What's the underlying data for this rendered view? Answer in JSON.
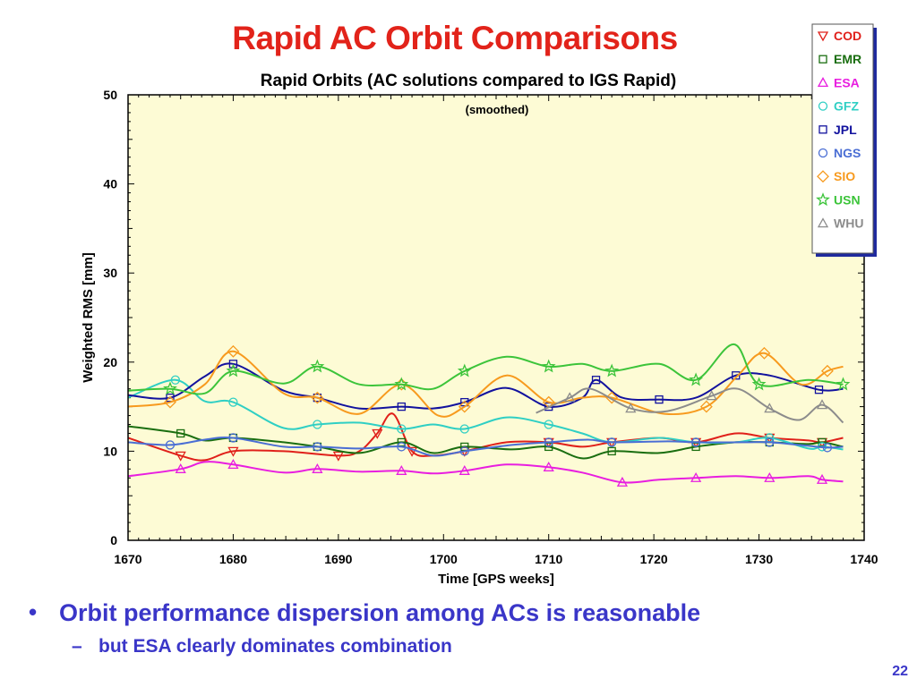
{
  "slide": {
    "title": "Rapid AC Orbit Comparisons",
    "bullet": "Orbit performance dispersion among ACs is reasonable",
    "sub_bullet": "but ESA clearly dominates combination",
    "page_number": "22"
  },
  "chart_data": {
    "type": "line",
    "title": "Rapid Orbits (AC solutions compared to IGS Rapid)",
    "subtitle": "(smoothed)",
    "xlabel": "Time [GPS weeks]",
    "ylabel": "Weighted RMS [mm]",
    "xlim": [
      1670,
      1740
    ],
    "ylim": [
      0,
      50
    ],
    "xticks": [
      1670,
      1680,
      1690,
      1700,
      1710,
      1720,
      1730,
      1740
    ],
    "yticks": [
      0,
      10,
      20,
      30,
      40,
      50
    ],
    "grid": false,
    "legend": "top-right",
    "plot_background": "#fdfbd5",
    "series": [
      {
        "name": "COD",
        "color": "#e0201a",
        "marker": "triangle-down",
        "x": [
          1670,
          1675,
          1677.3,
          1680,
          1684.8,
          1690,
          1692,
          1693.7,
          1695.2,
          1697,
          1699,
          1702,
          1706,
          1710,
          1713.2,
          1716,
          1720.5,
          1724,
          1727.8,
          1731,
          1734.7,
          1736,
          1738
        ],
        "y": [
          11.5,
          9.5,
          9.0,
          10.0,
          10.0,
          9.5,
          10.0,
          12.0,
          14.2,
          10.0,
          9.5,
          10.0,
          11.0,
          11.0,
          10.5,
          11.0,
          11.5,
          11.0,
          12.0,
          11.5,
          11.2,
          11.0,
          11.5
        ]
      },
      {
        "name": "EMR",
        "color": "#1a6e10",
        "marker": "square",
        "x": [
          1670,
          1675,
          1677.3,
          1680,
          1684.8,
          1688,
          1692,
          1696,
          1699,
          1702,
          1706.5,
          1710,
          1713.2,
          1716,
          1720.5,
          1724,
          1727.8,
          1731,
          1734.7,
          1736,
          1738
        ],
        "y": [
          12.8,
          12.0,
          11.2,
          11.5,
          11.0,
          10.5,
          9.8,
          11.0,
          9.8,
          10.5,
          10.2,
          10.5,
          9.2,
          10.0,
          9.8,
          10.5,
          11.0,
          11.0,
          10.8,
          11.0,
          10.5
        ]
      },
      {
        "name": "ESA",
        "color": "#e81ee0",
        "marker": "triangle-up",
        "x": [
          1670,
          1675,
          1677.3,
          1680,
          1684.8,
          1688,
          1692,
          1696,
          1699,
          1702,
          1706,
          1710,
          1713.2,
          1717,
          1720.5,
          1724,
          1727.8,
          1731,
          1734.7,
          1736,
          1738
        ],
        "y": [
          7.2,
          8.0,
          8.8,
          8.5,
          7.6,
          8.0,
          7.7,
          7.8,
          7.5,
          7.8,
          8.5,
          8.2,
          7.6,
          6.5,
          6.8,
          7.0,
          7.2,
          7.0,
          7.2,
          6.8,
          6.6
        ]
      },
      {
        "name": "GFZ",
        "color": "#2fcfc4",
        "marker": "circle",
        "x": [
          1670,
          1674.5,
          1677.3,
          1680,
          1684.8,
          1688,
          1692,
          1696,
          1699,
          1702,
          1706,
          1710,
          1713.2,
          1716,
          1720.5,
          1724,
          1727.8,
          1731,
          1734.7,
          1736,
          1738
        ],
        "y": [
          16.0,
          18.0,
          15.6,
          15.5,
          12.6,
          13.0,
          13.2,
          12.5,
          13.0,
          12.5,
          13.8,
          13.0,
          12.0,
          11.0,
          11.5,
          11.0,
          11.0,
          11.5,
          10.3,
          10.5,
          10.2
        ]
      },
      {
        "name": "JPL",
        "color": "#12129e",
        "marker": "square",
        "x": [
          1670,
          1674,
          1677.3,
          1680,
          1684.8,
          1688,
          1692,
          1696,
          1699,
          1702,
          1706,
          1710,
          1713.2,
          1714.5,
          1717,
          1720.5,
          1724,
          1727.8,
          1731,
          1735.7,
          1738
        ],
        "y": [
          16.3,
          16.0,
          18.4,
          19.8,
          16.8,
          16.0,
          14.8,
          15.0,
          14.8,
          15.5,
          17.1,
          15.0,
          16.0,
          18.0,
          16.0,
          15.8,
          16.0,
          18.5,
          18.5,
          16.9,
          17.0
        ]
      },
      {
        "name": "NGS",
        "color": "#4a6ed4",
        "marker": "circle",
        "x": [
          1670,
          1674,
          1677.3,
          1680,
          1684.8,
          1688,
          1692,
          1696,
          1699,
          1702,
          1706.5,
          1710,
          1713.7,
          1716,
          1721.3,
          1724,
          1728.5,
          1731,
          1734.7,
          1736.5,
          1738
        ],
        "y": [
          11.0,
          10.7,
          11.3,
          11.5,
          10.5,
          10.5,
          10.3,
          10.5,
          9.5,
          10.0,
          10.7,
          11.0,
          11.3,
          11.0,
          11.1,
          11.0,
          11.0,
          11.0,
          10.6,
          10.4,
          10.5
        ]
      },
      {
        "name": "SIO",
        "color": "#f79a1e",
        "marker": "diamond",
        "x": [
          1670,
          1674,
          1677.3,
          1680,
          1684.8,
          1688,
          1692,
          1696,
          1699.5,
          1702,
          1706,
          1710,
          1713.2,
          1716,
          1721,
          1725,
          1728,
          1730.5,
          1734,
          1736.5,
          1738
        ],
        "y": [
          15.0,
          15.5,
          17.5,
          21.2,
          16.5,
          16.0,
          14.2,
          17.5,
          14.0,
          15.0,
          18.5,
          15.5,
          16.0,
          16.0,
          14.2,
          15.0,
          18.5,
          21.0,
          17.5,
          19.0,
          19.5
        ]
      },
      {
        "name": "USN",
        "color": "#3cc43a",
        "marker": "star",
        "x": [
          1670,
          1674,
          1677.3,
          1680,
          1684.8,
          1688,
          1692,
          1696,
          1699,
          1702,
          1706,
          1710,
          1713.2,
          1716,
          1720.5,
          1724,
          1727.6,
          1730,
          1734.7,
          1738
        ],
        "y": [
          16.8,
          17.0,
          16.5,
          19.0,
          17.6,
          19.5,
          17.5,
          17.5,
          17.0,
          19.0,
          20.6,
          19.5,
          19.8,
          19.0,
          19.8,
          18.0,
          22.0,
          17.5,
          18.0,
          17.5
        ]
      },
      {
        "name": "WHU",
        "color": "#8c8c8c",
        "marker": "triangle-up",
        "x": [
          1708.8,
          1712,
          1714,
          1717.8,
          1721.3,
          1725.5,
          1728,
          1731,
          1733.8,
          1736,
          1738
        ],
        "y": [
          14.3,
          16.0,
          17.0,
          14.8,
          14.5,
          16.2,
          17.0,
          14.8,
          13.5,
          15.2,
          13.2
        ]
      }
    ]
  }
}
